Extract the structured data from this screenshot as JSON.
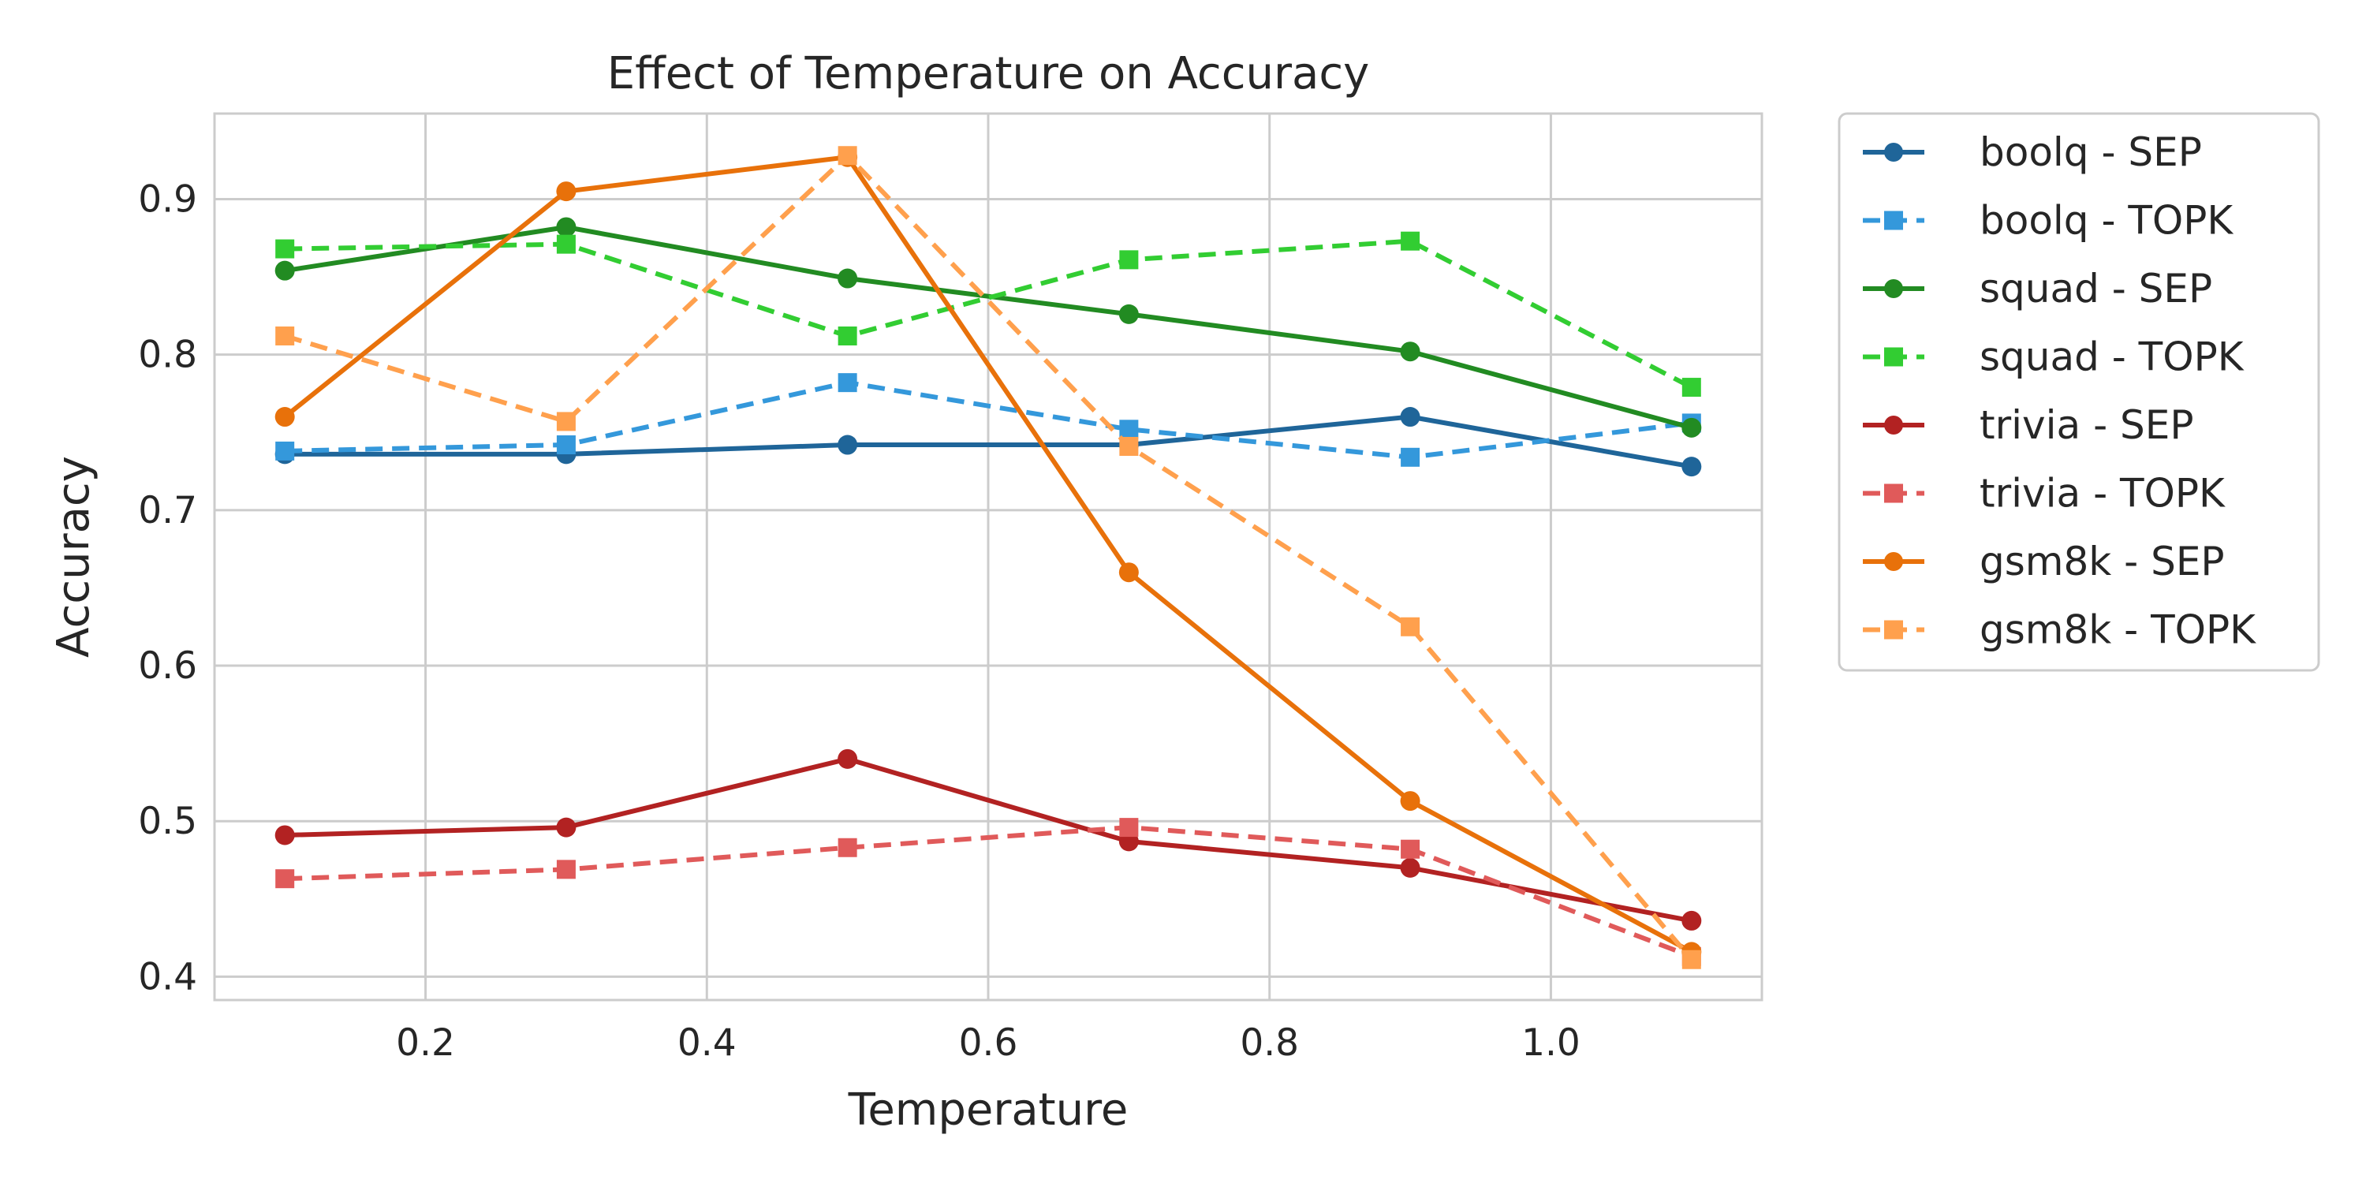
{
  "chart_data": {
    "type": "line",
    "title": "Effect of Temperature on Accuracy",
    "xlabel": "Temperature",
    "ylabel": "Accuracy",
    "xlim": [
      0.05,
      1.15
    ],
    "ylim": [
      0.385,
      0.955
    ],
    "xticks": [
      0.2,
      0.4,
      0.6,
      0.8,
      1.0
    ],
    "xtick_labels": [
      "0.2",
      "0.4",
      "0.6",
      "0.8",
      "1.0"
    ],
    "yticks": [
      0.4,
      0.5,
      0.6,
      0.7,
      0.8,
      0.9
    ],
    "ytick_labels": [
      "0.4",
      "0.5",
      "0.6",
      "0.7",
      "0.8",
      "0.9"
    ],
    "grid": true,
    "legend_position": "outside-right-top",
    "x": [
      0.1,
      0.3,
      0.5,
      0.7,
      0.9,
      1.1
    ],
    "series": [
      {
        "name": "boolq - SEP",
        "color": "#1f6599",
        "style": "solid",
        "marker": "circle",
        "values": [
          0.736,
          0.736,
          0.742,
          0.742,
          0.76,
          0.728
        ]
      },
      {
        "name": "boolq - TOPK",
        "color": "#3498db",
        "style": "dashed",
        "marker": "square",
        "values": [
          0.738,
          0.742,
          0.782,
          0.752,
          0.734,
          0.756
        ]
      },
      {
        "name": "squad - SEP",
        "color": "#228b22",
        "style": "solid",
        "marker": "circle",
        "values": [
          0.854,
          0.882,
          0.849,
          0.826,
          0.802,
          0.753
        ]
      },
      {
        "name": "squad - TOPK",
        "color": "#32cd32",
        "style": "dashed",
        "marker": "square",
        "values": [
          0.868,
          0.871,
          0.812,
          0.861,
          0.873,
          0.779
        ]
      },
      {
        "name": "trivia - SEP",
        "color": "#b22222",
        "style": "solid",
        "marker": "circle",
        "values": [
          0.491,
          0.496,
          0.54,
          0.487,
          0.47,
          0.436
        ]
      },
      {
        "name": "trivia - TOPK",
        "color": "#e05a5a",
        "style": "dashed",
        "marker": "square",
        "values": [
          0.463,
          0.469,
          0.483,
          0.496,
          0.482,
          0.413
        ]
      },
      {
        "name": "gsm8k - SEP",
        "color": "#e8710a",
        "style": "solid",
        "marker": "circle",
        "values": [
          0.76,
          0.905,
          0.927,
          0.66,
          0.513,
          0.416
        ]
      },
      {
        "name": "gsm8k - TOPK",
        "color": "#ffa04d",
        "style": "dashed",
        "marker": "square",
        "values": [
          0.812,
          0.757,
          0.928,
          0.741,
          0.625,
          0.411
        ]
      }
    ]
  }
}
